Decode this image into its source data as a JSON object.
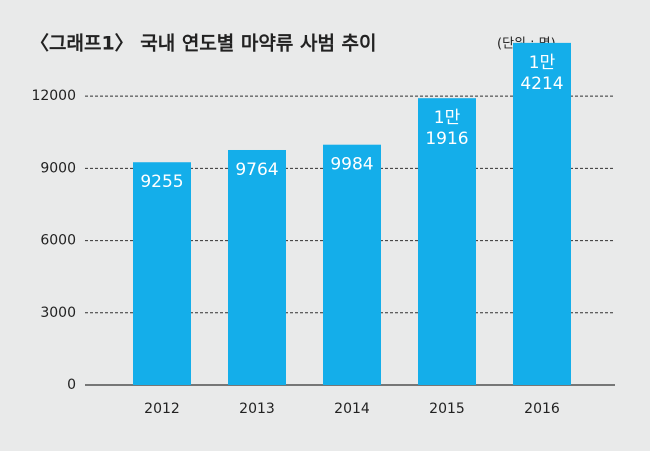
{
  "chart_data": {
    "type": "bar",
    "title": "〈그래프1〉 국내 연도별 마약류 사범 추이",
    "unit_label": "(단위 : 명)",
    "categories": [
      "2012",
      "2013",
      "2014",
      "2015",
      "2016"
    ],
    "values": [
      9255,
      9764,
      9984,
      11916,
      14214
    ],
    "value_labels": [
      "9255",
      "9764",
      "9984",
      "1만\n1916",
      "1만\n4214"
    ],
    "color": "#14aeea",
    "ylim": [
      0,
      14500
    ],
    "yticks": [
      0,
      3000,
      6000,
      9000,
      12000
    ],
    "grid": true
  }
}
